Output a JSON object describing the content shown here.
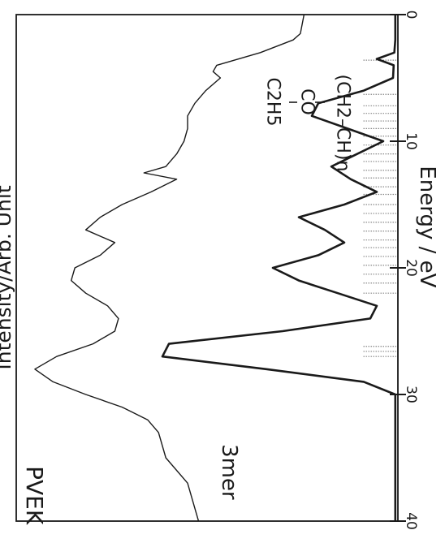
{
  "chart_data": {
    "type": "line",
    "title": "PVEK",
    "xlabel": "Energy / eV",
    "ylabel": "Intensity/Arb. Unit",
    "xlim": [
      0,
      40
    ],
    "x_reversed": true,
    "x_ticks": [
      "0",
      "10",
      "20",
      "30",
      "40"
    ],
    "grid": false,
    "orientation": "rotated-90",
    "series": [
      {
        "name": "PVEK",
        "points": [
          [
            0,
            0.2
          ],
          [
            1.5,
            0.21
          ],
          [
            2,
            0.23
          ],
          [
            3,
            0.32
          ],
          [
            4,
            0.44
          ],
          [
            4.5,
            0.45
          ],
          [
            5,
            0.43
          ],
          [
            6,
            0.47
          ],
          [
            7,
            0.5
          ],
          [
            8,
            0.52
          ],
          [
            9,
            0.52
          ],
          [
            10,
            0.53
          ],
          [
            11,
            0.55
          ],
          [
            12,
            0.58
          ],
          [
            12.5,
            0.64
          ],
          [
            13,
            0.55
          ],
          [
            14,
            0.62
          ],
          [
            15,
            0.7
          ],
          [
            16,
            0.76
          ],
          [
            17,
            0.8
          ],
          [
            18,
            0.72
          ],
          [
            19,
            0.76
          ],
          [
            20,
            0.83
          ],
          [
            21,
            0.84
          ],
          [
            22,
            0.8
          ],
          [
            23,
            0.74
          ],
          [
            24,
            0.71
          ],
          [
            25,
            0.72
          ],
          [
            26,
            0.78
          ],
          [
            27,
            0.88
          ],
          [
            28,
            0.94
          ],
          [
            29,
            0.89
          ],
          [
            30,
            0.8
          ],
          [
            31,
            0.7
          ],
          [
            32,
            0.63
          ],
          [
            33,
            0.6
          ],
          [
            35,
            0.58
          ],
          [
            37,
            0.52
          ],
          [
            39,
            0.5
          ],
          [
            40,
            0.49
          ]
        ]
      },
      {
        "name": "3mer",
        "points": [
          [
            0,
            0.003
          ],
          [
            2,
            0.003
          ],
          [
            3,
            0.006
          ],
          [
            3.5,
            0.06
          ],
          [
            4,
            0.008
          ],
          [
            5,
            0.01
          ],
          [
            6,
            0.1
          ],
          [
            7,
            0.24
          ],
          [
            8,
            0.26
          ],
          [
            9,
            0.15
          ],
          [
            10,
            0.04
          ],
          [
            11,
            0.12
          ],
          [
            12,
            0.2
          ],
          [
            13,
            0.14
          ],
          [
            14,
            0.06
          ],
          [
            15,
            0.16
          ],
          [
            16,
            0.3
          ],
          [
            17,
            0.22
          ],
          [
            18,
            0.16
          ],
          [
            19,
            0.24
          ],
          [
            20,
            0.38
          ],
          [
            21,
            0.3
          ],
          [
            22,
            0.18
          ],
          [
            23,
            0.06
          ],
          [
            24,
            0.08
          ],
          [
            25,
            0.35
          ],
          [
            26,
            0.7
          ],
          [
            27,
            0.72
          ],
          [
            28,
            0.4
          ],
          [
            29,
            0.1
          ],
          [
            30,
            0.003
          ],
          [
            40,
            0.003
          ]
        ]
      }
    ],
    "stick_energies": [
      3.6,
      6.3,
      7.2,
      7.8,
      8.4,
      9.0,
      9.6,
      10.3,
      11.0,
      11.6,
      12.3,
      12.9,
      13.6,
      14.2,
      15.0,
      15.7,
      16.4,
      17.1,
      17.8,
      18.4,
      19.1,
      19.8,
      20.5,
      21.2,
      22.0,
      26.2,
      26.6,
      27.0
    ],
    "annotations": {
      "series_label": "3mer",
      "formula_backbone": "(CH2–CH)n",
      "formula_group1": "CO",
      "formula_group2": "C2H5"
    }
  }
}
